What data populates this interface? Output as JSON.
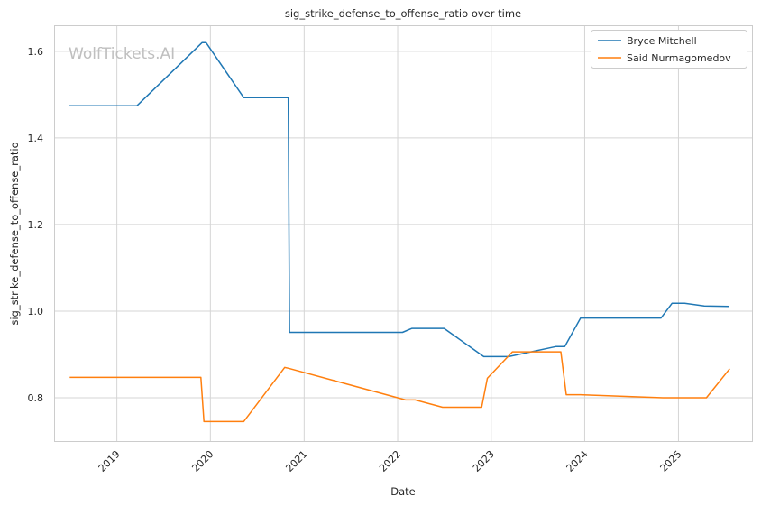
{
  "chart_data": {
    "type": "line",
    "title": "sig_strike_defense_to_offense_ratio over time",
    "xlabel": "Date",
    "ylabel": "sig_strike_defense_to_offense_ratio",
    "watermark": "WolfTickets.AI",
    "x_ticks": [
      "2019",
      "2020",
      "2021",
      "2022",
      "2023",
      "2024",
      "2025"
    ],
    "y_ticks": [
      "0.8",
      "1.0",
      "1.2",
      "1.4",
      "1.6"
    ],
    "xlim": [
      "2018-05-01",
      "2025-10-15"
    ],
    "ylim": [
      0.7,
      1.66
    ],
    "grid": true,
    "legend_position": "top-right",
    "series": [
      {
        "name": "Bryce Mitchell",
        "color": "#1f77b4",
        "points": [
          [
            "2018-06-30",
            1.474
          ],
          [
            "2019-03-20",
            1.474
          ],
          [
            "2019-11-30",
            1.62
          ],
          [
            "2019-12-15",
            1.62
          ],
          [
            "2020-05-10",
            1.493
          ],
          [
            "2020-10-31",
            1.493
          ],
          [
            "2020-11-05",
            0.951
          ],
          [
            "2022-01-20",
            0.951
          ],
          [
            "2022-02-26",
            0.96
          ],
          [
            "2022-07-01",
            0.96
          ],
          [
            "2022-12-03",
            0.895
          ],
          [
            "2023-03-10",
            0.895
          ],
          [
            "2023-09-10",
            0.918
          ],
          [
            "2023-10-15",
            0.918
          ],
          [
            "2023-12-16",
            0.984
          ],
          [
            "2024-10-25",
            0.984
          ],
          [
            "2024-12-07",
            1.018
          ],
          [
            "2025-01-25",
            1.018
          ],
          [
            "2025-04-12",
            1.012
          ],
          [
            "2025-07-19",
            1.011
          ]
        ]
      },
      {
        "name": "Said Nurmagomedov",
        "color": "#ff7f0e",
        "points": [
          [
            "2018-07-01",
            0.847
          ],
          [
            "2019-11-25",
            0.847
          ],
          [
            "2019-12-07",
            0.745
          ],
          [
            "2020-05-10",
            0.745
          ],
          [
            "2020-10-17",
            0.87
          ],
          [
            "2020-11-01",
            0.868
          ],
          [
            "2022-02-01",
            0.795
          ],
          [
            "2022-03-10",
            0.795
          ],
          [
            "2022-06-25",
            0.778
          ],
          [
            "2022-11-25",
            0.778
          ],
          [
            "2022-12-17",
            0.845
          ],
          [
            "2023-03-25",
            0.906
          ],
          [
            "2023-09-30",
            0.906
          ],
          [
            "2023-10-21",
            0.807
          ],
          [
            "2023-12-15",
            0.807
          ],
          [
            "2024-11-01",
            0.8
          ],
          [
            "2025-04-20",
            0.8
          ],
          [
            "2025-07-20",
            0.867
          ]
        ]
      }
    ]
  }
}
